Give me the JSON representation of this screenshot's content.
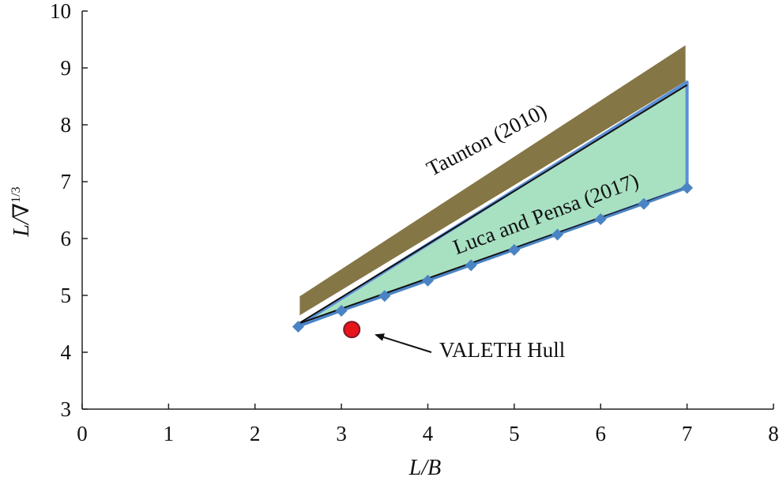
{
  "chart_data": {
    "type": "area",
    "xlabel": "L/B",
    "ylabel_main": "L/∇",
    "ylabel_sup": "1/3",
    "xlim": [
      0,
      8
    ],
    "ylim": [
      3,
      10
    ],
    "x_ticks": [
      "0",
      "1",
      "2",
      "3",
      "4",
      "5",
      "6",
      "7",
      "8"
    ],
    "y_ticks": [
      "3",
      "4",
      "5",
      "6",
      "7",
      "8",
      "9",
      "10"
    ],
    "grid": false,
    "regions": [
      {
        "name": "Taunton (2010)",
        "color": "#857645",
        "polygon": [
          [
            2.5,
            4.6
          ],
          [
            2.5,
            5.0
          ],
          [
            7.0,
            9.45
          ],
          [
            7.0,
            8.75
          ]
        ]
      },
      {
        "name": "Luca and Pensa (2017)",
        "color": "#a8e0c2",
        "edge_color": "#5b8fd6",
        "polygon": [
          [
            2.5,
            4.47
          ],
          [
            7.0,
            8.75
          ],
          [
            7.0,
            6.9
          ]
        ]
      }
    ],
    "series": [
      {
        "name": "Luca and Pensa (2017)",
        "marker": "diamond",
        "color": "#4a84c4",
        "x": [
          2.5,
          3.0,
          3.5,
          4.0,
          4.5,
          5.0,
          5.5,
          6.0,
          6.5,
          7.0
        ],
        "y": [
          4.45,
          4.73,
          4.99,
          5.26,
          5.53,
          5.8,
          6.07,
          6.34,
          6.61,
          6.89
        ]
      }
    ],
    "lines": [
      {
        "x": [
          2.5,
          7.0
        ],
        "y": [
          4.5,
          8.7
        ],
        "color": "#111111"
      },
      {
        "x": [
          2.5,
          7.0
        ],
        "y": [
          4.5,
          6.9
        ],
        "color": "#111111"
      }
    ],
    "points": [
      {
        "name": "VALETH Hull",
        "x": 3.12,
        "y": 4.4,
        "color": "#e8141c"
      }
    ],
    "annotations": [
      {
        "text": "Taunton (2010)"
      },
      {
        "text": "Luca and Pensa (2017)"
      },
      {
        "text": "VALETH Hull"
      }
    ]
  }
}
